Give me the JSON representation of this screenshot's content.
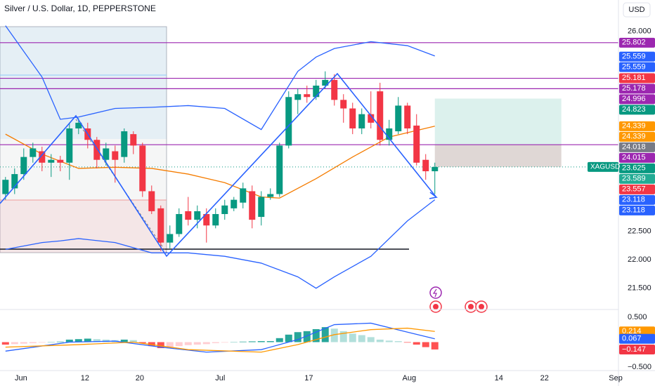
{
  "chart_data": [
    {
      "type": "candlestick",
      "title": "Silver / U.S. Dollar, 1D, PEPPERSTONE",
      "currency": "USD",
      "symbol": "XAGUSD",
      "up_color": "#089981",
      "down_color": "#f23645",
      "open": [
        23.15,
        23.25,
        23.5,
        23.8,
        23.9,
        23.7,
        23.75,
        23.7,
        24.3,
        24.3,
        24.1,
        23.75,
        23.9,
        23.8,
        24.2,
        24.0,
        23.2,
        22.9,
        22.3,
        22.45,
        22.85,
        22.7,
        22.8,
        22.6,
        22.8,
        22.9,
        23.0,
        23.2,
        22.75,
        23.1,
        23.15,
        24.0,
        24.8,
        24.9,
        24.85,
        25.05,
        25.15,
        24.8,
        24.65,
        24.3,
        24.55,
        24.95,
        24.1,
        24.25,
        24.7,
        24.35,
        23.75,
        23.55
      ],
      "high": [
        23.45,
        23.6,
        23.95,
        24.05,
        23.98,
        23.85,
        23.82,
        24.4,
        24.48,
        24.4,
        24.15,
        24.05,
        24.0,
        24.3,
        24.25,
        24.05,
        23.3,
        22.95,
        22.6,
        22.9,
        23.1,
        22.95,
        22.9,
        22.9,
        23.05,
        23.1,
        23.35,
        23.3,
        23.2,
        23.25,
        24.05,
        24.95,
        25.0,
        25.05,
        25.15,
        25.3,
        25.25,
        24.9,
        24.75,
        24.65,
        24.95,
        25.1,
        24.45,
        24.85,
        24.75,
        24.55,
        23.85,
        23.7
      ],
      "low": [
        23.05,
        23.15,
        23.4,
        23.7,
        23.55,
        23.45,
        23.55,
        23.4,
        24.2,
        23.95,
        23.6,
        23.65,
        23.35,
        23.7,
        23.85,
        23.1,
        22.8,
        22.15,
        22.2,
        22.4,
        22.6,
        22.55,
        22.3,
        22.55,
        22.7,
        22.85,
        22.9,
        22.55,
        22.6,
        23.05,
        23.1,
        23.95,
        24.55,
        24.75,
        24.8,
        25.0,
        24.7,
        24.4,
        24.2,
        24.2,
        24.3,
        24.0,
        24.0,
        24.2,
        24.2,
        23.65,
        23.4,
        23.15
      ],
      "close": [
        23.4,
        23.5,
        23.8,
        23.95,
        23.7,
        23.75,
        23.7,
        24.3,
        24.4,
        24.1,
        23.75,
        23.95,
        23.75,
        24.25,
        24.0,
        23.2,
        22.85,
        22.3,
        22.45,
        22.8,
        22.7,
        22.85,
        22.6,
        22.8,
        22.95,
        23.05,
        23.25,
        22.7,
        23.1,
        23.15,
        24.0,
        24.85,
        24.9,
        24.85,
        25.05,
        25.15,
        24.8,
        24.65,
        24.3,
        24.55,
        24.4,
        24.1,
        24.3,
        24.7,
        24.3,
        23.7,
        23.55,
        23.625
      ],
      "bollinger": {
        "color": "#2962ff",
        "x": [
          0,
          4,
          6,
          8,
          12,
          16,
          20,
          24,
          28,
          32,
          34,
          36,
          40,
          44,
          47
        ],
        "upper": [
          26.1,
          25.2,
          24.46,
          24.5,
          24.65,
          24.67,
          24.7,
          24.65,
          24.28,
          25.3,
          25.55,
          25.7,
          25.82,
          25.75,
          25.57
        ],
        "lower": [
          22.18,
          22.3,
          22.33,
          22.37,
          22.3,
          22.12,
          22.12,
          22.06,
          21.94,
          21.7,
          21.5,
          21.7,
          22.06,
          22.68,
          23.05
        ]
      },
      "ma": {
        "color": "#f57c00",
        "x": [
          0,
          4,
          8,
          12,
          16,
          20,
          24,
          28,
          30,
          34,
          38,
          42,
          47
        ],
        "values": [
          24.2,
          23.85,
          23.6,
          23.62,
          23.6,
          23.5,
          23.35,
          23.1,
          23.08,
          23.42,
          23.8,
          24.15,
          24.34
        ]
      },
      "price_labels": [
        {
          "value": 25.802,
          "color": "#9c27b0",
          "line": true
        },
        {
          "value": 25.559,
          "color": "#2962ff"
        },
        {
          "value": 25.559,
          "color": "#2962ff"
        },
        {
          "value": 25.181,
          "color": "#f23645"
        },
        {
          "value": 25.178,
          "color": "#9c27b0",
          "line": true
        },
        {
          "value": 24.996,
          "color": "#9c27b0",
          "line": true
        },
        {
          "value": 24.823,
          "color": "#089981"
        },
        {
          "value": 24.339,
          "color": "#ff9800"
        },
        {
          "value": 24.339,
          "color": "#ff9800"
        },
        {
          "value": 24.018,
          "color": "#787b86"
        },
        {
          "value": 24.015,
          "color": "#9c27b0",
          "line": true
        },
        {
          "value": 23.625,
          "color": "#089981"
        },
        {
          "value": 23.589,
          "color": "#22ab94"
        },
        {
          "value": 23.557,
          "color": "#f23645"
        },
        {
          "value": 23.118,
          "color": "#2962ff"
        },
        {
          "value": 23.118,
          "color": "#2962ff"
        }
      ],
      "ylim": [
        21.14,
        26.55
      ],
      "yticks": [
        {
          "value": 26,
          "label": "26.000"
        },
        {
          "value": 22.5,
          "label": "22.500"
        },
        {
          "value": 22,
          "label": "22.000"
        },
        {
          "value": 21.5,
          "label": "21.500"
        }
      ],
      "xlim": [
        -0.6,
        67.1
      ]
    },
    {
      "type": "macd",
      "histogram": [
        -0.05,
        -0.04,
        -0.03,
        -0.02,
        -0.01,
        0.005,
        0.01,
        0.05,
        0.06,
        0.07,
        0.06,
        0.05,
        0.04,
        0.05,
        0.04,
        -0.02,
        -0.08,
        -0.12,
        -0.1,
        -0.08,
        -0.06,
        -0.05,
        -0.04,
        -0.02,
        -0.01,
        0.005,
        0.01,
        0.015,
        0.02,
        0.02,
        0.08,
        0.15,
        0.2,
        0.22,
        0.26,
        0.3,
        0.27,
        0.22,
        0.17,
        0.14,
        0.1,
        0.05,
        0.03,
        0.02,
        -0.01,
        -0.05,
        -0.1,
        -0.147
      ],
      "macd": {
        "color": "#2962ff",
        "x": [
          0,
          7,
          12,
          17,
          22,
          28,
          32,
          36,
          40,
          44,
          47
        ],
        "values": [
          -0.18,
          0.0,
          0.02,
          -0.1,
          -0.2,
          -0.15,
          0.05,
          0.35,
          0.38,
          0.2,
          0.067
        ]
      },
      "signal": {
        "color": "#ff9800",
        "x": [
          0,
          8,
          14,
          20,
          28,
          32,
          36,
          40,
          44,
          47
        ],
        "values": [
          -0.1,
          -0.05,
          0.0,
          -0.15,
          -0.2,
          -0.05,
          0.15,
          0.25,
          0.28,
          0.214
        ]
      },
      "last_labels": [
        {
          "value": 0.214,
          "color": "#ff9800"
        },
        {
          "value": 0.067,
          "color": "#2962ff"
        },
        {
          "value": -0.147,
          "label": "−0.147",
          "color": "#f23645"
        }
      ],
      "ylim": [
        -0.569,
        0.653
      ],
      "yticks": [
        {
          "value": 0.5,
          "label": "0.500"
        },
        {
          "value": -0.5,
          "label": "−0.500"
        }
      ],
      "xlim": [
        -0.6,
        67.1
      ],
      "xticks": [
        {
          "value": 1.7,
          "label": "Jun"
        },
        {
          "value": 8.7,
          "label": "12"
        },
        {
          "value": 14.7,
          "label": "20"
        },
        {
          "value": 23.5,
          "label": "Jul"
        },
        {
          "value": 33.2,
          "label": "17"
        },
        {
          "value": 44.2,
          "label": "Aug"
        },
        {
          "value": 54,
          "label": "14"
        },
        {
          "value": 59,
          "label": "22"
        },
        {
          "value": 66.8,
          "label": "Sep"
        }
      ]
    }
  ]
}
